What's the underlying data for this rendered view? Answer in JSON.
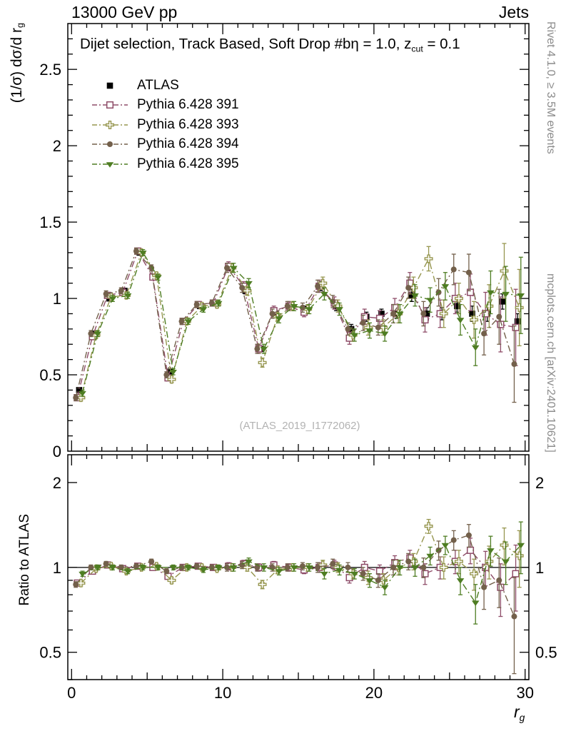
{
  "header": {
    "left": "13000 GeV pp",
    "right": "Jets"
  },
  "side_notes": {
    "rivet": "Rivet 4.1.0, ≥ 3.5M events",
    "mcplots": "mcplots.cern.ch [arXiv:2401.10621]"
  },
  "watermark": "(ATLAS_2019_I1772062)",
  "chart_data": {
    "type": "scatter",
    "title": "Dijet selection, Track Based, Soft Drop #bη = 1.0, z_cut = 0.1",
    "title_parts": {
      "pre": "Dijet selection, Track Based, Soft Drop #bη = 1.0, z",
      "sub": "cut",
      "post": " = 0.1"
    },
    "xlabel": "r_g",
    "xlabel_parts": {
      "pre": "r",
      "sub": "g"
    },
    "ylabel_main": "(1/σ) dσ/d r_g",
    "ylabel_main_parts": {
      "pre": "(1/σ) dσ/d r",
      "sub": "g"
    },
    "ylabel_ratio": "Ratio to ATLAS",
    "legend_position": "top-left",
    "x_range": [
      -0.25,
      30.25
    ],
    "main_y_range": [
      0,
      2.8
    ],
    "ratio_y_range": [
      0.4,
      2.51
    ],
    "ratio_y_scale": "log",
    "x_major_ticks": [
      0,
      10,
      20,
      30
    ],
    "main_y_major_ticks": [
      0,
      0.5,
      1,
      1.5,
      2,
      2.5
    ],
    "ratio_y_major_ticks": [
      0.5,
      1,
      2
    ],
    "x": [
      0.5,
      1.5,
      2.5,
      3.5,
      4.5,
      5.5,
      6.5,
      7.5,
      8.5,
      9.5,
      10.5,
      11.5,
      12.5,
      13.5,
      14.5,
      15.5,
      16.5,
      17.5,
      18.5,
      19.5,
      20.5,
      21.5,
      22.5,
      23.5,
      24.5,
      25.5,
      26.5,
      27.5,
      28.5,
      29.5
    ],
    "series": [
      {
        "name": "ATLAS",
        "marker": "square-filled",
        "color": "#000000",
        "line": "none",
        "values": [
          0.4,
          0.77,
          1.0,
          1.05,
          1.3,
          1.14,
          0.52,
          0.85,
          0.95,
          0.97,
          1.2,
          1.05,
          0.67,
          0.9,
          0.95,
          0.93,
          1.08,
          0.95,
          0.8,
          0.88,
          0.9,
          0.9,
          1.02,
          0.9,
          0.9,
          0.95,
          0.9,
          0.9,
          0.98,
          0.85
        ],
        "errors": [
          0.01,
          0.01,
          0.01,
          0.01,
          0.01,
          0.01,
          0.01,
          0.01,
          0.01,
          0.01,
          0.02,
          0.02,
          0.02,
          0.02,
          0.02,
          0.02,
          0.03,
          0.03,
          0.03,
          0.03,
          0.03,
          0.03,
          0.04,
          0.04,
          0.04,
          0.04,
          0.05,
          0.05,
          0.05,
          0.05
        ]
      },
      {
        "name": "Pythia 6.428 391",
        "marker": "square-open",
        "color": "#8e4c68",
        "line": "dashdot",
        "values": [
          0.35,
          0.75,
          1.02,
          1.04,
          1.31,
          1.14,
          0.48,
          0.85,
          0.96,
          0.97,
          1.21,
          1.08,
          0.67,
          0.92,
          0.95,
          0.91,
          1.08,
          0.97,
          0.74,
          0.88,
          0.87,
          0.94,
          1.1,
          0.86,
          0.9,
          1.0,
          1.04,
          0.9,
          0.83,
          0.81
        ],
        "ratio": [
          0.88,
          0.97,
          1.02,
          0.99,
          1.01,
          1.0,
          0.93,
          1.0,
          1.01,
          1.0,
          1.01,
          1.03,
          1.0,
          1.02,
          1.0,
          0.98,
          1.0,
          1.02,
          0.92,
          1.0,
          0.97,
          1.04,
          1.08,
          0.95,
          1.0,
          1.05,
          1.15,
          1.0,
          0.85,
          0.95
        ],
        "errors": [
          0.02,
          0.02,
          0.02,
          0.02,
          0.02,
          0.02,
          0.02,
          0.02,
          0.02,
          0.02,
          0.03,
          0.03,
          0.03,
          0.03,
          0.03,
          0.03,
          0.04,
          0.04,
          0.04,
          0.05,
          0.05,
          0.06,
          0.07,
          0.08,
          0.09,
          0.1,
          0.12,
          0.14,
          0.18,
          0.25
        ]
      },
      {
        "name": "Pythia 6.428 393",
        "marker": "cross-open",
        "color": "#96964f",
        "line": "dashdot",
        "values": [
          0.35,
          0.76,
          1.01,
          1.02,
          1.3,
          1.15,
          0.47,
          0.85,
          0.95,
          0.96,
          1.2,
          1.05,
          0.58,
          0.88,
          0.95,
          0.93,
          1.1,
          0.95,
          0.76,
          0.81,
          0.81,
          0.9,
          1.07,
          1.26,
          0.9,
          1.0,
          0.86,
          0.95,
          1.18,
          0.94
        ],
        "ratio": [
          0.88,
          0.99,
          1.01,
          0.97,
          1.0,
          1.01,
          0.9,
          1.0,
          1.0,
          0.99,
          1.0,
          1.0,
          0.87,
          0.98,
          1.0,
          1.0,
          1.02,
          1.0,
          0.95,
          0.92,
          0.9,
          1.0,
          1.05,
          1.4,
          1.0,
          1.05,
          0.95,
          1.05,
          1.2,
          1.1
        ],
        "errors": [
          0.02,
          0.02,
          0.02,
          0.02,
          0.02,
          0.02,
          0.02,
          0.02,
          0.02,
          0.02,
          0.03,
          0.03,
          0.03,
          0.03,
          0.03,
          0.03,
          0.04,
          0.04,
          0.04,
          0.05,
          0.05,
          0.06,
          0.07,
          0.08,
          0.09,
          0.1,
          0.12,
          0.14,
          0.18,
          0.25
        ]
      },
      {
        "name": "Pythia 6.428 394",
        "marker": "circle-filled",
        "color": "#73604b",
        "line": "dashdot",
        "values": [
          0.35,
          0.77,
          1.03,
          1.05,
          1.31,
          1.2,
          0.5,
          0.85,
          0.96,
          0.97,
          1.2,
          1.07,
          0.67,
          0.9,
          0.95,
          0.94,
          1.08,
          0.98,
          0.8,
          0.84,
          0.81,
          0.9,
          1.07,
          0.9,
          1.04,
          1.19,
          1.17,
          0.77,
          0.88,
          0.57
        ],
        "ratio": [
          0.87,
          1.0,
          1.03,
          1.0,
          1.01,
          1.05,
          0.97,
          1.0,
          1.01,
          1.0,
          1.0,
          1.02,
          1.0,
          1.0,
          1.0,
          1.01,
          1.0,
          1.03,
          1.0,
          0.95,
          0.9,
          1.0,
          1.05,
          1.0,
          1.15,
          1.25,
          1.3,
          0.85,
          0.9,
          0.67
        ],
        "errors": [
          0.02,
          0.02,
          0.02,
          0.02,
          0.02,
          0.02,
          0.02,
          0.02,
          0.02,
          0.02,
          0.03,
          0.03,
          0.03,
          0.03,
          0.03,
          0.03,
          0.04,
          0.04,
          0.04,
          0.05,
          0.05,
          0.06,
          0.07,
          0.08,
          0.09,
          0.1,
          0.12,
          0.14,
          0.18,
          0.25
        ]
      },
      {
        "name": "Pythia 6.428 395",
        "marker": "triangle-down-filled",
        "color": "#4e7d22",
        "line": "dashdot",
        "values": [
          0.38,
          0.77,
          1.0,
          1.02,
          1.3,
          1.14,
          0.52,
          0.85,
          0.93,
          0.97,
          1.2,
          1.1,
          0.67,
          0.87,
          0.95,
          0.93,
          1.03,
          0.93,
          0.76,
          0.79,
          0.77,
          0.9,
          1.02,
          0.99,
          1.08,
          0.86,
          0.68,
          1.04,
          1.03,
          1.02
        ],
        "ratio": [
          0.95,
          1.0,
          1.0,
          0.97,
          1.0,
          1.0,
          1.0,
          1.0,
          0.98,
          1.0,
          1.0,
          1.05,
          1.0,
          0.97,
          1.0,
          1.0,
          0.95,
          0.98,
          0.95,
          0.9,
          0.85,
          1.0,
          1.0,
          1.1,
          1.2,
          0.9,
          0.75,
          1.15,
          1.05,
          1.2
        ],
        "errors": [
          0.02,
          0.02,
          0.02,
          0.02,
          0.02,
          0.02,
          0.02,
          0.02,
          0.02,
          0.02,
          0.03,
          0.03,
          0.03,
          0.03,
          0.03,
          0.03,
          0.04,
          0.04,
          0.04,
          0.05,
          0.05,
          0.06,
          0.07,
          0.08,
          0.09,
          0.1,
          0.12,
          0.14,
          0.18,
          0.25
        ]
      }
    ]
  }
}
